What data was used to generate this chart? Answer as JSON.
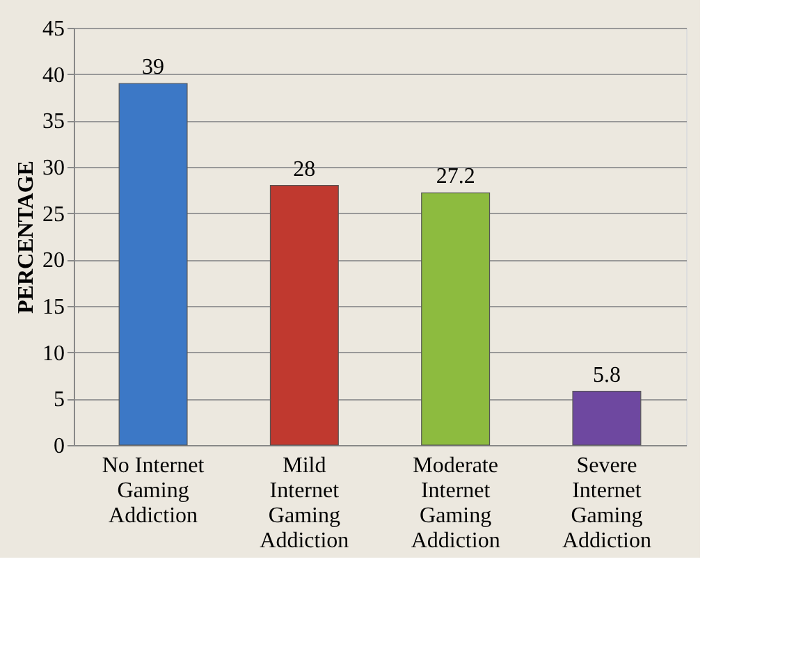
{
  "chart_data": {
    "type": "bar",
    "ylabel": "PERCENTAGE",
    "categories": [
      "No Internet\nGaming\nAddiction",
      "Mild\nInternet\nGaming\nAddiction",
      "Moderate\nInternet\nGaming\nAddiction",
      "Severe\nInternet\nGaming\nAddiction"
    ],
    "values": [
      39,
      28,
      27.2,
      5.8
    ],
    "colors": [
      "#3c78c6",
      "#c0392f",
      "#8dbb3f",
      "#6e48a0"
    ],
    "ylim": [
      0,
      45
    ],
    "yticks": [
      0,
      5,
      10,
      15,
      20,
      25,
      30,
      35,
      40,
      45
    ],
    "grid": "y",
    "data_labels": true
  }
}
